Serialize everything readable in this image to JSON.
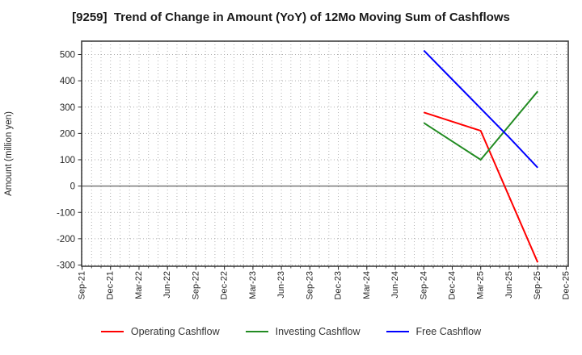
{
  "title": "[9259]  Trend of Change in Amount (YoY) of 12Mo Moving Sum of Cashflows",
  "axes": {
    "y_label": "Amount (million yen)",
    "y_ticks": [
      500,
      400,
      300,
      200,
      100,
      0,
      -100,
      -200,
      -300
    ],
    "x_tick_labels": [
      "Sep-21",
      "Dec-21",
      "Mar-22",
      "Jun-22",
      "Sep-22",
      "Dec-22",
      "Mar-23",
      "Jun-23",
      "Sep-23",
      "Dec-23",
      "Mar-24",
      "Jun-24",
      "Sep-24",
      "Dec-24",
      "Mar-25",
      "Jun-25",
      "Sep-25",
      "Dec-25"
    ]
  },
  "legend": [
    {
      "label": "Operating Cashflow",
      "color": "#ff0000"
    },
    {
      "label": "Investing Cashflow",
      "color": "#228b22"
    },
    {
      "label": "Free Cashflow",
      "color": "#0000ff"
    }
  ],
  "chart_data": {
    "type": "line",
    "title": "[9259]  Trend of Change in Amount (YoY) of 12Mo Moving Sum of Cashflows",
    "xlabel": "",
    "ylabel": "Amount (million yen)",
    "ylim": [
      -310,
      550
    ],
    "grid": true,
    "grid_style": "dotted, vertical gridline every month, horizontal every 100",
    "legend_position": "bottom",
    "x_categories": [
      "Sep-21",
      "Dec-21",
      "Mar-22",
      "Jun-22",
      "Sep-22",
      "Dec-22",
      "Mar-23",
      "Jun-23",
      "Sep-23",
      "Dec-23",
      "Mar-24",
      "Jun-24",
      "Sep-24",
      "Dec-24",
      "Mar-25",
      "Jun-25",
      "Sep-25",
      "Dec-25"
    ],
    "data_x": [
      "Sep-24",
      "Dec-24",
      "Mar-25",
      "Jun-25",
      "Sep-25"
    ],
    "series": [
      {
        "name": "Operating Cashflow",
        "color": "#ff0000",
        "values": [
          280,
          245,
          210,
          -40,
          -290
        ]
      },
      {
        "name": "Investing Cashflow",
        "color": "#228b22",
        "values": [
          240,
          170,
          100,
          230,
          360
        ]
      },
      {
        "name": "Free Cashflow",
        "color": "#0000ff",
        "values": [
          515,
          405,
          295,
          185,
          70
        ]
      }
    ]
  },
  "colors": {
    "grid": "#aaaaaa",
    "zero_line": "#777777",
    "axis_border": "#404040",
    "tick_text": "#262626",
    "background": "#ffffff"
  }
}
